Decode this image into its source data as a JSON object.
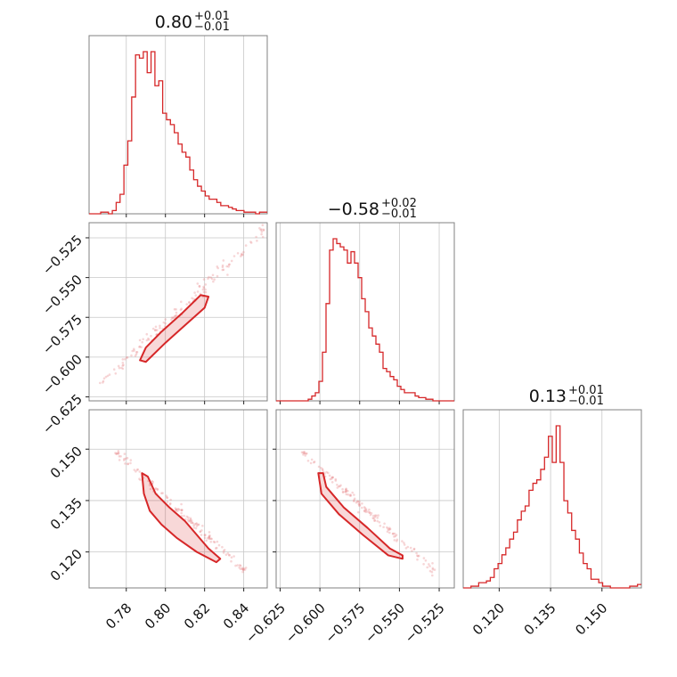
{
  "chart_data": {
    "type": "corner",
    "color": "#d62728",
    "params": [
      {
        "median": 0.8,
        "err_plus": 0.01,
        "err_minus": 0.01,
        "title_main": "0.80",
        "title_sup": "+0.01",
        "title_sub": "−0.01",
        "range": [
          0.761,
          0.852
        ],
        "ticks": [
          0.78,
          0.8,
          0.82,
          0.84
        ],
        "tick_labels": [
          "0.78",
          "0.80",
          "0.82",
          "0.84"
        ]
      },
      {
        "median": -0.58,
        "err_plus": 0.02,
        "err_minus": 0.01,
        "title_main": "−0.58",
        "title_sup": "+0.02",
        "title_sub": "−0.01",
        "range": [
          -0.6275,
          -0.5155
        ],
        "ticks": [
          -0.625,
          -0.6,
          -0.575,
          -0.55,
          -0.525
        ],
        "tick_labels": [
          "−0.625",
          "−0.600",
          "−0.575",
          "−0.550",
          "−0.525"
        ]
      },
      {
        "median": 0.13,
        "err_plus": 0.01,
        "err_minus": 0.01,
        "title_main": "0.13",
        "title_sup": "+0.01",
        "title_sub": "−0.01",
        "range": [
          0.1095,
          0.1615
        ],
        "ticks": [
          0.12,
          0.135,
          0.15
        ],
        "tick_labels": [
          "0.120",
          "0.135",
          "0.150"
        ]
      }
    ],
    "histograms": [
      {
        "param": 0,
        "start": 0.761,
        "end": 0.852,
        "counts": [
          0,
          0,
          0,
          1,
          1,
          0,
          2,
          7,
          12,
          30,
          45,
          72,
          98,
          96,
          100,
          87,
          100,
          79,
          82,
          62,
          58,
          55,
          50,
          43,
          38,
          35,
          27,
          21,
          17,
          14,
          11,
          9,
          9,
          7,
          5,
          5,
          4,
          3,
          2,
          2,
          1,
          1,
          1,
          0,
          1,
          1
        ]
      },
      {
        "param": 1,
        "start": -0.6275,
        "end": -0.5155,
        "counts": [
          0,
          0,
          0,
          0,
          0,
          0,
          0,
          0,
          0,
          1,
          3,
          5,
          12,
          30,
          60,
          93,
          100,
          97,
          95,
          93,
          85,
          92,
          85,
          76,
          63,
          55,
          45,
          40,
          35,
          30,
          20,
          18,
          15,
          13,
          9,
          7,
          5,
          5,
          5,
          3,
          2,
          2,
          1,
          1,
          0,
          0,
          0,
          0,
          0,
          0
        ]
      },
      {
        "param": 2,
        "start": 0.1095,
        "end": 0.1615,
        "counts": [
          0,
          0,
          1,
          1,
          3,
          3,
          4,
          6,
          11,
          14,
          19,
          23,
          28,
          32,
          39,
          44,
          47,
          56,
          60,
          62,
          68,
          75,
          87,
          72,
          93,
          72,
          50,
          43,
          33,
          28,
          20,
          14,
          11,
          5,
          5,
          3,
          1,
          1,
          0,
          0,
          0,
          0,
          0,
          1,
          1,
          2
        ]
      }
    ],
    "pairs": [
      {
        "x_param": 0,
        "y_param": 1,
        "line_x": [
          0.768,
          0.85
        ],
        "line_y": [
          -0.6156,
          -0.521
        ],
        "contour": [
          [
            0.787,
            -0.602
          ],
          [
            0.79,
            -0.603
          ],
          [
            0.8,
            -0.591
          ],
          [
            0.81,
            -0.58
          ],
          [
            0.82,
            -0.569
          ],
          [
            0.822,
            -0.562
          ],
          [
            0.818,
            -0.561
          ],
          [
            0.808,
            -0.573
          ],
          [
            0.798,
            -0.584
          ],
          [
            0.79,
            -0.594
          ],
          [
            0.787,
            -0.602
          ]
        ]
      },
      {
        "x_param": 0,
        "y_param": 2,
        "line_x": [
          0.775,
          0.84
        ],
        "line_y": [
          0.149,
          0.115
        ],
        "contour": [
          [
            0.788,
            0.143
          ],
          [
            0.791,
            0.142
          ],
          [
            0.795,
            0.137
          ],
          [
            0.802,
            0.133
          ],
          [
            0.81,
            0.129
          ],
          [
            0.816,
            0.125
          ],
          [
            0.822,
            0.121
          ],
          [
            0.828,
            0.118
          ],
          [
            0.826,
            0.117
          ],
          [
            0.816,
            0.12
          ],
          [
            0.806,
            0.124
          ],
          [
            0.798,
            0.128
          ],
          [
            0.792,
            0.132
          ],
          [
            0.789,
            0.137
          ],
          [
            0.788,
            0.143
          ]
        ]
      },
      {
        "x_param": 1,
        "y_param": 2,
        "line_x": [
          -0.61,
          -0.53
        ],
        "line_y": [
          0.149,
          0.115
        ],
        "contour": [
          [
            -0.601,
            0.143
          ],
          [
            -0.598,
            0.143
          ],
          [
            -0.596,
            0.139
          ],
          [
            -0.585,
            0.133
          ],
          [
            -0.57,
            0.127
          ],
          [
            -0.556,
            0.121
          ],
          [
            -0.548,
            0.119
          ],
          [
            -0.548,
            0.118
          ],
          [
            -0.557,
            0.119
          ],
          [
            -0.573,
            0.125
          ],
          [
            -0.588,
            0.131
          ],
          [
            -0.599,
            0.137
          ],
          [
            -0.601,
            0.143
          ]
        ]
      }
    ]
  }
}
